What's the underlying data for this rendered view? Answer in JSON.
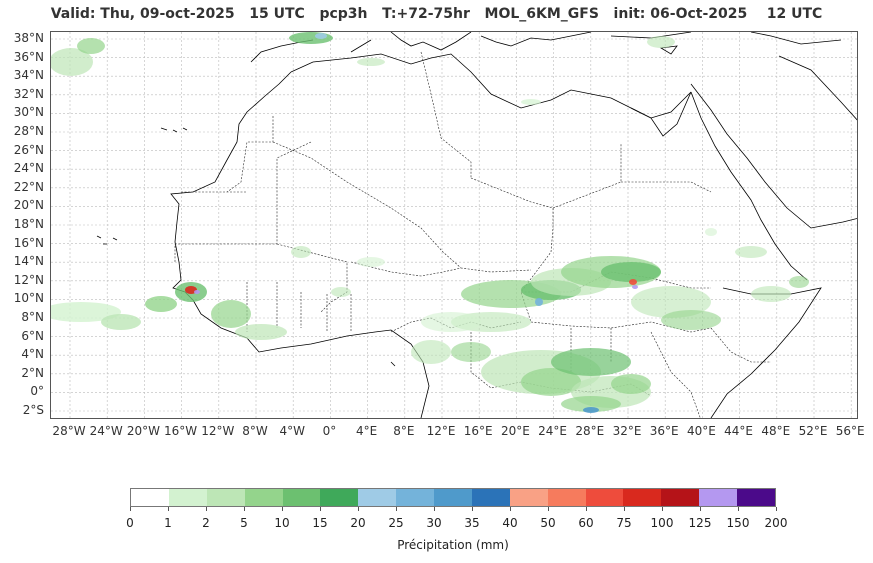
{
  "header": {
    "title": "Valid: Thu, 09-oct-2025   15 UTC   pcp3h   T:+72-75hr   MOL_6KM_GFS   init: 06-Oct-2025    12 UTC"
  },
  "map": {
    "lat_labels": [
      "38°N",
      "36°N",
      "34°N",
      "32°N",
      "30°N",
      "28°N",
      "26°N",
      "24°N",
      "22°N",
      "20°N",
      "18°N",
      "16°N",
      "14°N",
      "12°N",
      "10°N",
      "8°N",
      "6°N",
      "4°N",
      "2°N",
      "0°",
      "2°S"
    ],
    "lon_labels": [
      "28°W",
      "24°W",
      "20°W",
      "16°W",
      "12°W",
      "8°W",
      "4°W",
      "0°",
      "4°E",
      "8°E",
      "12°E",
      "16°E",
      "20°E",
      "24°E",
      "28°E",
      "32°E",
      "36°E",
      "40°E",
      "44°E",
      "48°E",
      "52°E",
      "56°E"
    ],
    "land_color": "#ffffff",
    "coastline_color": "#000000",
    "border_style": "dashed",
    "grid": true
  },
  "colorbar": {
    "ticks": [
      "0",
      "1",
      "2",
      "5",
      "10",
      "15",
      "20",
      "25",
      "30",
      "35",
      "40",
      "50",
      "60",
      "75",
      "100",
      "125",
      "150",
      "200"
    ],
    "colors": [
      "#ffffff",
      "#d3f2d0",
      "#bde6b6",
      "#94d48c",
      "#6cc070",
      "#3fa95a",
      "#9fcbe6",
      "#74b3da",
      "#4f9acb",
      "#2b73b8",
      "#f9a185",
      "#f67b5d",
      "#ee4c3c",
      "#d9291e",
      "#b51318",
      "#b498f0",
      "#4b0a8a"
    ],
    "label": "Précipitation (mm)"
  }
}
